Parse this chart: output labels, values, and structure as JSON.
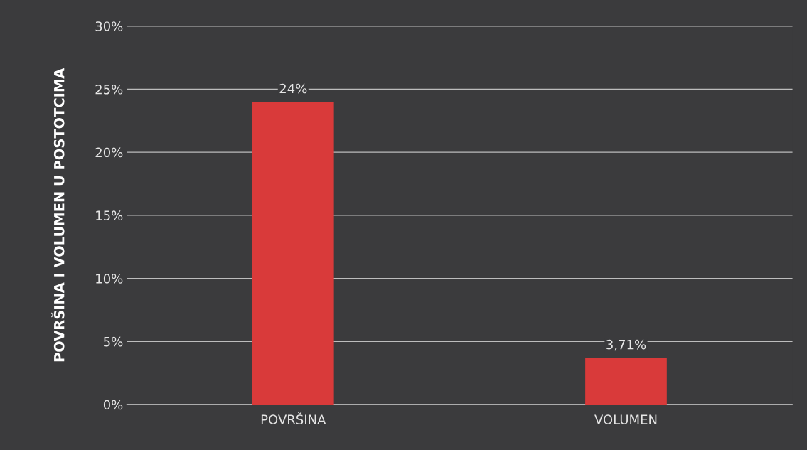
{
  "chart_data": {
    "type": "bar",
    "ylabel": "POVRŠINA I VOLUMEN U POSTOTCIMA",
    "categories": [
      "POVRŠINA",
      "VOLUMEN"
    ],
    "values": [
      24,
      3.71
    ],
    "value_labels": [
      "24%",
      "3,71%"
    ],
    "color": "#d93a3a",
    "ylim": [
      0,
      30
    ],
    "yticks": [
      {
        "value": 0,
        "label": "0%"
      },
      {
        "value": 5,
        "label": "5%"
      },
      {
        "value": 10,
        "label": "10%"
      },
      {
        "value": 15,
        "label": "15%"
      },
      {
        "value": 20,
        "label": "20%"
      },
      {
        "value": 25,
        "label": "25%"
      },
      {
        "value": 30,
        "label": "30%"
      }
    ],
    "grid": "y",
    "legend": false
  }
}
